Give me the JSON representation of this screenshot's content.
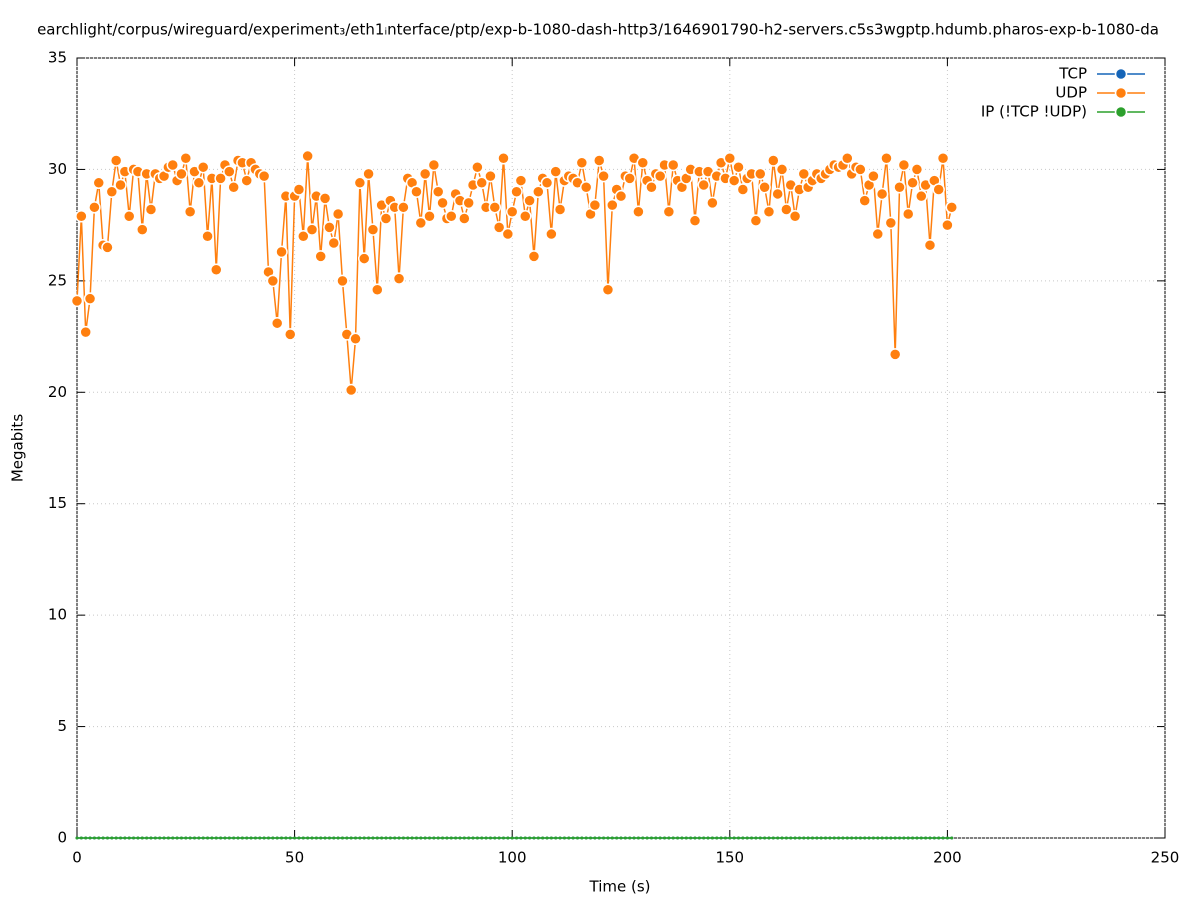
{
  "chart_data": {
    "type": "line",
    "title": "earchlight/corpus/wireguard/experiment₃/eth1ᵢnterface/ptp/exp-b-1080-dash-http3/1646901790-h2-servers.c5s3wgptp.hdumb.pharos-exp-b-1080-da",
    "x_label": "Time (s)",
    "y_label": "Megabits",
    "xlim": [
      0,
      250
    ],
    "xticks": [
      0,
      50,
      100,
      150,
      200,
      250
    ],
    "ylim": [
      0,
      35
    ],
    "yticks": [
      0,
      5,
      10,
      15,
      20,
      25,
      30,
      35
    ],
    "grid": true,
    "legend": "top-right",
    "x": [
      0,
      1,
      2,
      3,
      4,
      5,
      6,
      7,
      8,
      9,
      10,
      11,
      12,
      13,
      14,
      15,
      16,
      17,
      18,
      19,
      20,
      21,
      22,
      23,
      24,
      25,
      26,
      27,
      28,
      29,
      30,
      31,
      32,
      33,
      34,
      35,
      36,
      37,
      38,
      39,
      40,
      41,
      42,
      43,
      44,
      45,
      46,
      47,
      48,
      49,
      50,
      51,
      52,
      53,
      54,
      55,
      56,
      57,
      58,
      59,
      60,
      61,
      62,
      63,
      64,
      65,
      66,
      67,
      68,
      69,
      70,
      71,
      72,
      73,
      74,
      75,
      76,
      77,
      78,
      79,
      80,
      81,
      82,
      83,
      84,
      85,
      86,
      87,
      88,
      89,
      90,
      91,
      92,
      93,
      94,
      95,
      96,
      97,
      98,
      99,
      100,
      101,
      102,
      103,
      104,
      105,
      106,
      107,
      108,
      109,
      110,
      111,
      112,
      113,
      114,
      115,
      116,
      117,
      118,
      119,
      120,
      121,
      122,
      123,
      124,
      125,
      126,
      127,
      128,
      129,
      130,
      131,
      132,
      133,
      134,
      135,
      136,
      137,
      138,
      139,
      140,
      141,
      142,
      143,
      144,
      145,
      146,
      147,
      148,
      149,
      150,
      151,
      152,
      153,
      154,
      155,
      156,
      157,
      158,
      159,
      160,
      161,
      162,
      163,
      164,
      165,
      166,
      167,
      168,
      169,
      170,
      171,
      172,
      173,
      174,
      175,
      176,
      177,
      178,
      179,
      180,
      181,
      182,
      183,
      184,
      185,
      186,
      187,
      188,
      189,
      190,
      191,
      192,
      193,
      194,
      195,
      196,
      197,
      198,
      199,
      200,
      201
    ],
    "series": [
      {
        "name": "TCP",
        "color": "#1565b8",
        "values": [
          0,
          0,
          0,
          0,
          0,
          0,
          0,
          0,
          0,
          0,
          0,
          0,
          0,
          0,
          0,
          0,
          0,
          0,
          0,
          0,
          0,
          0,
          0,
          0,
          0,
          0,
          0,
          0,
          0,
          0,
          0,
          0,
          0,
          0,
          0,
          0,
          0,
          0,
          0,
          0,
          0,
          0,
          0,
          0,
          0,
          0,
          0,
          0,
          0,
          0,
          0,
          0,
          0,
          0,
          0,
          0,
          0,
          0,
          0,
          0,
          0,
          0,
          0,
          0,
          0,
          0,
          0,
          0,
          0,
          0,
          0,
          0,
          0,
          0,
          0,
          0,
          0,
          0,
          0,
          0,
          0,
          0,
          0,
          0,
          0,
          0,
          0,
          0,
          0,
          0,
          0,
          0,
          0,
          0,
          0,
          0,
          0,
          0,
          0,
          0,
          0,
          0,
          0,
          0,
          0,
          0,
          0,
          0,
          0,
          0,
          0,
          0,
          0,
          0,
          0,
          0,
          0,
          0,
          0,
          0,
          0,
          0,
          0,
          0,
          0,
          0,
          0,
          0,
          0,
          0,
          0,
          0,
          0,
          0,
          0,
          0,
          0,
          0,
          0,
          0,
          0,
          0,
          0,
          0,
          0,
          0,
          0,
          0,
          0,
          0,
          0,
          0,
          0,
          0,
          0,
          0,
          0,
          0,
          0,
          0,
          0,
          0,
          0,
          0,
          0,
          0,
          0,
          0,
          0,
          0,
          0,
          0,
          0,
          0,
          0,
          0,
          0,
          0,
          0,
          0,
          0,
          0,
          0,
          0,
          0,
          0,
          0,
          0,
          0,
          0,
          0,
          0,
          0,
          0,
          0,
          0,
          0,
          0,
          0,
          0,
          0,
          0
        ]
      },
      {
        "name": "UDP",
        "color": "#ff7f0e",
        "values": [
          24.1,
          27.9,
          22.7,
          24.2,
          28.3,
          29.4,
          26.6,
          26.5,
          29.0,
          30.4,
          29.3,
          29.9,
          27.9,
          30.0,
          29.9,
          27.3,
          29.8,
          28.2,
          29.8,
          29.6,
          29.7,
          30.1,
          30.2,
          29.5,
          29.8,
          30.5,
          28.1,
          29.9,
          29.4,
          30.1,
          27.0,
          29.6,
          25.5,
          29.6,
          30.2,
          29.9,
          29.2,
          30.4,
          30.3,
          29.5,
          30.3,
          30.0,
          29.8,
          29.7,
          25.4,
          25.0,
          23.1,
          26.3,
          28.8,
          22.6,
          28.8,
          29.1,
          27.0,
          30.6,
          27.3,
          28.8,
          26.1,
          28.7,
          27.4,
          26.7,
          28.0,
          25.0,
          22.6,
          20.1,
          22.4,
          29.4,
          26.0,
          29.8,
          27.3,
          24.6,
          28.4,
          27.8,
          28.6,
          28.3,
          25.1,
          28.3,
          29.6,
          29.4,
          29.0,
          27.6,
          29.8,
          27.9,
          30.2,
          29.0,
          28.5,
          27.8,
          27.9,
          28.9,
          28.6,
          27.8,
          28.5,
          29.3,
          30.1,
          29.4,
          28.3,
          29.7,
          28.3,
          27.4,
          30.5,
          27.1,
          28.1,
          29.0,
          29.5,
          27.9,
          28.6,
          26.1,
          29.0,
          29.6,
          29.4,
          27.1,
          29.9,
          28.2,
          29.5,
          29.7,
          29.6,
          29.4,
          30.3,
          29.2,
          28.0,
          28.4,
          30.4,
          29.7,
          24.6,
          28.4,
          29.1,
          28.8,
          29.7,
          29.6,
          30.5,
          28.1,
          30.3,
          29.5,
          29.2,
          29.8,
          29.7,
          30.2,
          28.1,
          30.2,
          29.5,
          29.2,
          29.6,
          30.0,
          27.7,
          29.9,
          29.3,
          29.9,
          28.5,
          29.7,
          30.3,
          29.6,
          30.5,
          29.5,
          30.1,
          29.1,
          29.6,
          29.8,
          27.7,
          29.8,
          29.2,
          28.1,
          30.4,
          28.9,
          30.0,
          28.2,
          29.3,
          27.9,
          29.1,
          29.8,
          29.2,
          29.5,
          29.8,
          29.6,
          29.8,
          30.0,
          30.2,
          30.1,
          30.2,
          30.5,
          29.8,
          30.1,
          30.0,
          28.6,
          29.3,
          29.7,
          27.1,
          28.9,
          30.5,
          27.6,
          21.7,
          29.2,
          30.2,
          28.0,
          29.4,
          30.0,
          28.8,
          29.3,
          26.6,
          29.5,
          29.1,
          30.5,
          27.5,
          28.3
        ]
      },
      {
        "name": "IP (!TCP  !UDP)",
        "color": "#2ca02c",
        "values": [
          0,
          0,
          0,
          0,
          0,
          0,
          0,
          0,
          0,
          0,
          0,
          0,
          0,
          0,
          0,
          0,
          0,
          0,
          0,
          0,
          0,
          0,
          0,
          0,
          0,
          0,
          0,
          0,
          0,
          0,
          0,
          0,
          0,
          0,
          0,
          0,
          0,
          0,
          0,
          0,
          0,
          0,
          0,
          0,
          0,
          0,
          0,
          0,
          0,
          0,
          0,
          0,
          0,
          0,
          0,
          0,
          0,
          0,
          0,
          0,
          0,
          0,
          0,
          0,
          0,
          0,
          0,
          0,
          0,
          0,
          0,
          0,
          0,
          0,
          0,
          0,
          0,
          0,
          0,
          0,
          0,
          0,
          0,
          0,
          0,
          0,
          0,
          0,
          0,
          0,
          0,
          0,
          0,
          0,
          0,
          0,
          0,
          0,
          0,
          0,
          0,
          0,
          0,
          0,
          0,
          0,
          0,
          0,
          0,
          0,
          0,
          0,
          0,
          0,
          0,
          0,
          0,
          0,
          0,
          0,
          0,
          0,
          0,
          0,
          0,
          0,
          0,
          0,
          0,
          0,
          0,
          0,
          0,
          0,
          0,
          0,
          0,
          0,
          0,
          0,
          0,
          0,
          0,
          0,
          0,
          0,
          0,
          0,
          0,
          0,
          0,
          0,
          0,
          0,
          0,
          0,
          0,
          0,
          0,
          0,
          0,
          0,
          0,
          0,
          0,
          0,
          0,
          0,
          0,
          0,
          0,
          0,
          0,
          0,
          0,
          0,
          0,
          0,
          0,
          0,
          0,
          0,
          0,
          0,
          0,
          0,
          0,
          0,
          0,
          0,
          0,
          0,
          0,
          0,
          0,
          0,
          0,
          0,
          0,
          0,
          0,
          0
        ]
      }
    ]
  }
}
